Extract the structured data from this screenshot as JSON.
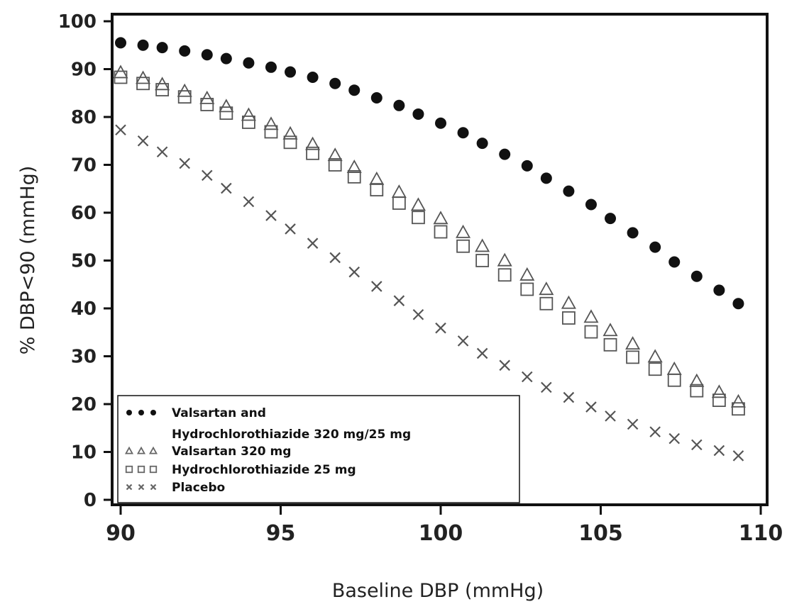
{
  "chart_data": {
    "type": "scatter",
    "title": "",
    "xlabel": "Baseline DBP (mmHg)",
    "ylabel": "% DBP<90 (mmHg)",
    "xlim": [
      90,
      110
    ],
    "ylim": [
      0,
      100
    ],
    "x_ticks": [
      "90",
      "95",
      "100",
      "105",
      "110"
    ],
    "y_ticks": [
      "0",
      "10",
      "20",
      "30",
      "40",
      "50",
      "60",
      "70",
      "80",
      "90",
      "100"
    ],
    "grid": false,
    "legend_position": "bottom-left",
    "x": [
      90,
      90.7,
      91.3,
      92,
      92.7,
      93.3,
      94,
      94.7,
      95.3,
      96,
      96.7,
      97.3,
      98,
      98.7,
      99.3,
      100,
      100.7,
      101.3,
      102,
      102.7,
      103.3,
      104,
      104.7,
      105.3,
      106,
      106.7,
      107.3,
      108,
      108.7,
      109.3
    ],
    "series": [
      {
        "name_lines": [
          "Valsartan and",
          "Hydrochlorothiazide 320 mg/25 mg"
        ],
        "marker": "filled-circle",
        "color": "#111111",
        "values": [
          95.5,
          95,
          94.5,
          93.8,
          93,
          92.2,
          91.3,
          90.4,
          89.4,
          88.3,
          87,
          85.6,
          84,
          82.4,
          80.6,
          78.7,
          76.7,
          74.5,
          72.2,
          69.8,
          67.2,
          64.5,
          61.7,
          58.8,
          55.8,
          52.8,
          49.7,
          46.7,
          43.8,
          41
        ]
      },
      {
        "name": "Valsartan 320 mg",
        "marker": "open-triangle",
        "color": "#555555",
        "values": [
          89.3,
          88.1,
          86.8,
          85.4,
          83.9,
          82.2,
          80.4,
          78.5,
          76.5,
          74.3,
          72,
          69.5,
          67,
          64.3,
          61.6,
          58.8,
          55.9,
          53,
          50,
          47,
          44,
          41.1,
          38.2,
          35.4,
          32.6,
          29.9,
          27.3,
          24.8,
          22.5,
          20.5
        ]
      },
      {
        "name": "Hydrochlorothiazide 25 mg",
        "marker": "open-square",
        "color": "#555555",
        "values": [
          88.3,
          87,
          85.7,
          84.2,
          82.6,
          80.8,
          78.9,
          76.9,
          74.7,
          72.4,
          70,
          67.5,
          64.8,
          62,
          59,
          56,
          53,
          50,
          47,
          44,
          41,
          38,
          35.1,
          32.4,
          29.8,
          27.3,
          25,
          22.8,
          20.8,
          19
        ]
      },
      {
        "name": "Placebo",
        "marker": "x",
        "color": "#555555",
        "values": [
          77.3,
          75,
          72.7,
          70.3,
          67.8,
          65.1,
          62.3,
          59.4,
          56.6,
          53.6,
          50.6,
          47.6,
          44.6,
          41.6,
          38.7,
          35.9,
          33.2,
          30.6,
          28.1,
          25.7,
          23.5,
          21.4,
          19.4,
          17.5,
          15.8,
          14.2,
          12.8,
          11.5,
          10.3,
          9.2
        ]
      }
    ]
  }
}
